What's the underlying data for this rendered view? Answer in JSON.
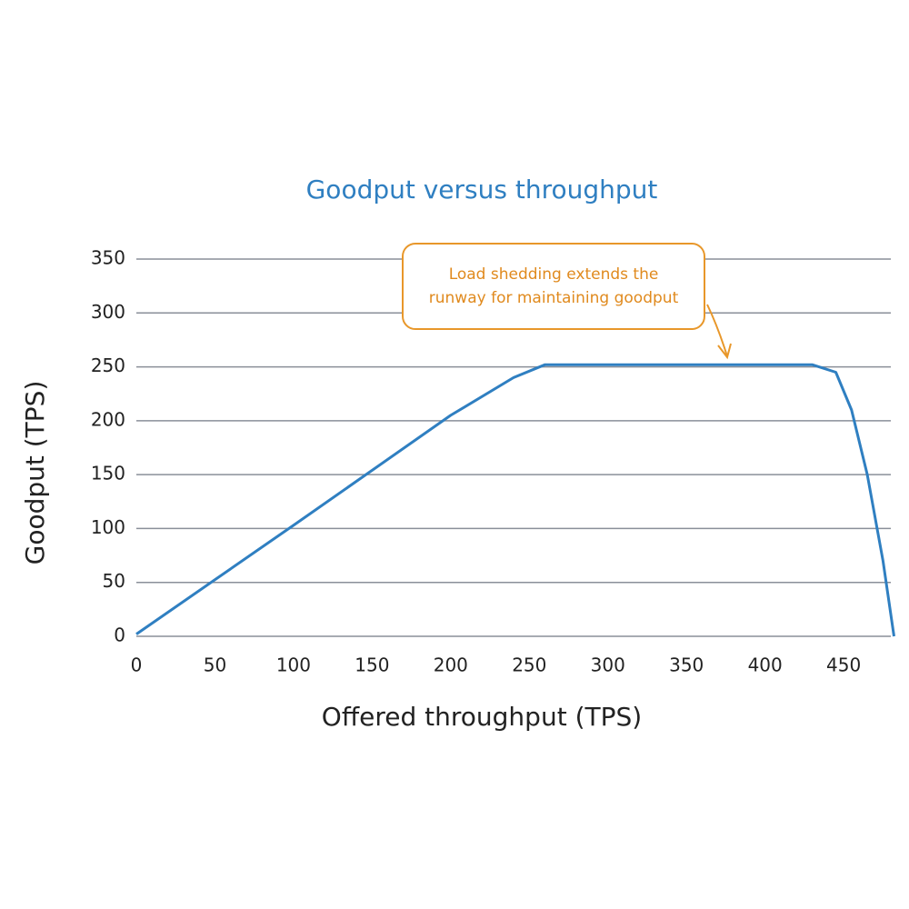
{
  "chart_data": {
    "type": "line",
    "title": "Goodput versus throughput",
    "x_label": "Offered throughput (TPS)",
    "y_label": "Goodput (TPS)",
    "annotation": [
      "Load shedding extends the",
      "runway for maintaining goodput"
    ],
    "x": [
      0,
      100,
      200,
      240,
      260,
      430,
      445,
      455,
      465,
      475,
      482
    ],
    "values": [
      2,
      103,
      205,
      240,
      252,
      252,
      245,
      210,
      150,
      70,
      0
    ],
    "color": "#2f7fc1",
    "xlim": [
      0,
      480
    ],
    "xticks": [
      0,
      50,
      100,
      150,
      200,
      250,
      300,
      350,
      400,
      450
    ],
    "ylim": [
      0,
      350
    ],
    "yticks": [
      0,
      50,
      100,
      150,
      200,
      250,
      300,
      350
    ],
    "grid": true
  }
}
